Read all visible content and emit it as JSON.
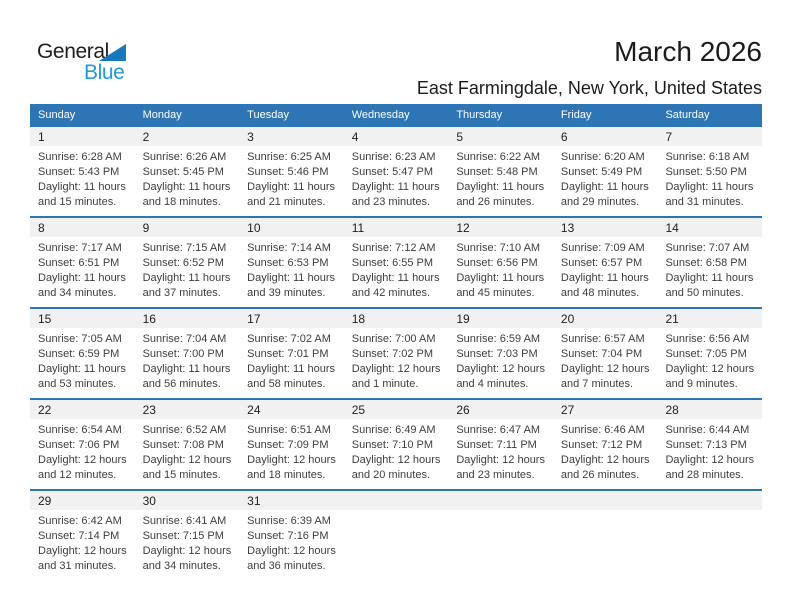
{
  "logo": {
    "part1": "General",
    "part2": "Blue"
  },
  "header": {
    "title": "March 2026",
    "subtitle": "East Farmingdale, New York, United States"
  },
  "weekdays": [
    "Sunday",
    "Monday",
    "Tuesday",
    "Wednesday",
    "Thursday",
    "Friday",
    "Saturday"
  ],
  "colors": {
    "header_blue": "#2e75b6",
    "row_line_blue": "#2e75b6",
    "date_band_gray": "#f1f1f1",
    "logo_blue": "#1e9cd8",
    "logo_triangle_blue": "#1778be"
  },
  "weeks": [
    [
      {
        "date": "1",
        "sunrise": "Sunrise: 6:28 AM",
        "sunset": "Sunset: 5:43 PM",
        "daylight1": "Daylight: 11 hours",
        "daylight2": "and 15 minutes."
      },
      {
        "date": "2",
        "sunrise": "Sunrise: 6:26 AM",
        "sunset": "Sunset: 5:45 PM",
        "daylight1": "Daylight: 11 hours",
        "daylight2": "and 18 minutes."
      },
      {
        "date": "3",
        "sunrise": "Sunrise: 6:25 AM",
        "sunset": "Sunset: 5:46 PM",
        "daylight1": "Daylight: 11 hours",
        "daylight2": "and 21 minutes."
      },
      {
        "date": "4",
        "sunrise": "Sunrise: 6:23 AM",
        "sunset": "Sunset: 5:47 PM",
        "daylight1": "Daylight: 11 hours",
        "daylight2": "and 23 minutes."
      },
      {
        "date": "5",
        "sunrise": "Sunrise: 6:22 AM",
        "sunset": "Sunset: 5:48 PM",
        "daylight1": "Daylight: 11 hours",
        "daylight2": "and 26 minutes."
      },
      {
        "date": "6",
        "sunrise": "Sunrise: 6:20 AM",
        "sunset": "Sunset: 5:49 PM",
        "daylight1": "Daylight: 11 hours",
        "daylight2": "and 29 minutes."
      },
      {
        "date": "7",
        "sunrise": "Sunrise: 6:18 AM",
        "sunset": "Sunset: 5:50 PM",
        "daylight1": "Daylight: 11 hours",
        "daylight2": "and 31 minutes."
      }
    ],
    [
      {
        "date": "8",
        "sunrise": "Sunrise: 7:17 AM",
        "sunset": "Sunset: 6:51 PM",
        "daylight1": "Daylight: 11 hours",
        "daylight2": "and 34 minutes."
      },
      {
        "date": "9",
        "sunrise": "Sunrise: 7:15 AM",
        "sunset": "Sunset: 6:52 PM",
        "daylight1": "Daylight: 11 hours",
        "daylight2": "and 37 minutes."
      },
      {
        "date": "10",
        "sunrise": "Sunrise: 7:14 AM",
        "sunset": "Sunset: 6:53 PM",
        "daylight1": "Daylight: 11 hours",
        "daylight2": "and 39 minutes."
      },
      {
        "date": "11",
        "sunrise": "Sunrise: 7:12 AM",
        "sunset": "Sunset: 6:55 PM",
        "daylight1": "Daylight: 11 hours",
        "daylight2": "and 42 minutes."
      },
      {
        "date": "12",
        "sunrise": "Sunrise: 7:10 AM",
        "sunset": "Sunset: 6:56 PM",
        "daylight1": "Daylight: 11 hours",
        "daylight2": "and 45 minutes."
      },
      {
        "date": "13",
        "sunrise": "Sunrise: 7:09 AM",
        "sunset": "Sunset: 6:57 PM",
        "daylight1": "Daylight: 11 hours",
        "daylight2": "and 48 minutes."
      },
      {
        "date": "14",
        "sunrise": "Sunrise: 7:07 AM",
        "sunset": "Sunset: 6:58 PM",
        "daylight1": "Daylight: 11 hours",
        "daylight2": "and 50 minutes."
      }
    ],
    [
      {
        "date": "15",
        "sunrise": "Sunrise: 7:05 AM",
        "sunset": "Sunset: 6:59 PM",
        "daylight1": "Daylight: 11 hours",
        "daylight2": "and 53 minutes."
      },
      {
        "date": "16",
        "sunrise": "Sunrise: 7:04 AM",
        "sunset": "Sunset: 7:00 PM",
        "daylight1": "Daylight: 11 hours",
        "daylight2": "and 56 minutes."
      },
      {
        "date": "17",
        "sunrise": "Sunrise: 7:02 AM",
        "sunset": "Sunset: 7:01 PM",
        "daylight1": "Daylight: 11 hours",
        "daylight2": "and 58 minutes."
      },
      {
        "date": "18",
        "sunrise": "Sunrise: 7:00 AM",
        "sunset": "Sunset: 7:02 PM",
        "daylight1": "Daylight: 12 hours",
        "daylight2": "and 1 minute."
      },
      {
        "date": "19",
        "sunrise": "Sunrise: 6:59 AM",
        "sunset": "Sunset: 7:03 PM",
        "daylight1": "Daylight: 12 hours",
        "daylight2": "and 4 minutes."
      },
      {
        "date": "20",
        "sunrise": "Sunrise: 6:57 AM",
        "sunset": "Sunset: 7:04 PM",
        "daylight1": "Daylight: 12 hours",
        "daylight2": "and 7 minutes."
      },
      {
        "date": "21",
        "sunrise": "Sunrise: 6:56 AM",
        "sunset": "Sunset: 7:05 PM",
        "daylight1": "Daylight: 12 hours",
        "daylight2": "and 9 minutes."
      }
    ],
    [
      {
        "date": "22",
        "sunrise": "Sunrise: 6:54 AM",
        "sunset": "Sunset: 7:06 PM",
        "daylight1": "Daylight: 12 hours",
        "daylight2": "and 12 minutes."
      },
      {
        "date": "23",
        "sunrise": "Sunrise: 6:52 AM",
        "sunset": "Sunset: 7:08 PM",
        "daylight1": "Daylight: 12 hours",
        "daylight2": "and 15 minutes."
      },
      {
        "date": "24",
        "sunrise": "Sunrise: 6:51 AM",
        "sunset": "Sunset: 7:09 PM",
        "daylight1": "Daylight: 12 hours",
        "daylight2": "and 18 minutes."
      },
      {
        "date": "25",
        "sunrise": "Sunrise: 6:49 AM",
        "sunset": "Sunset: 7:10 PM",
        "daylight1": "Daylight: 12 hours",
        "daylight2": "and 20 minutes."
      },
      {
        "date": "26",
        "sunrise": "Sunrise: 6:47 AM",
        "sunset": "Sunset: 7:11 PM",
        "daylight1": "Daylight: 12 hours",
        "daylight2": "and 23 minutes."
      },
      {
        "date": "27",
        "sunrise": "Sunrise: 6:46 AM",
        "sunset": "Sunset: 7:12 PM",
        "daylight1": "Daylight: 12 hours",
        "daylight2": "and 26 minutes."
      },
      {
        "date": "28",
        "sunrise": "Sunrise: 6:44 AM",
        "sunset": "Sunset: 7:13 PM",
        "daylight1": "Daylight: 12 hours",
        "daylight2": "and 28 minutes."
      }
    ],
    [
      {
        "date": "29",
        "sunrise": "Sunrise: 6:42 AM",
        "sunset": "Sunset: 7:14 PM",
        "daylight1": "Daylight: 12 hours",
        "daylight2": "and 31 minutes."
      },
      {
        "date": "30",
        "sunrise": "Sunrise: 6:41 AM",
        "sunset": "Sunset: 7:15 PM",
        "daylight1": "Daylight: 12 hours",
        "daylight2": "and 34 minutes."
      },
      {
        "date": "31",
        "sunrise": "Sunrise: 6:39 AM",
        "sunset": "Sunset: 7:16 PM",
        "daylight1": "Daylight: 12 hours",
        "daylight2": "and 36 minutes."
      },
      null,
      null,
      null,
      null
    ]
  ]
}
